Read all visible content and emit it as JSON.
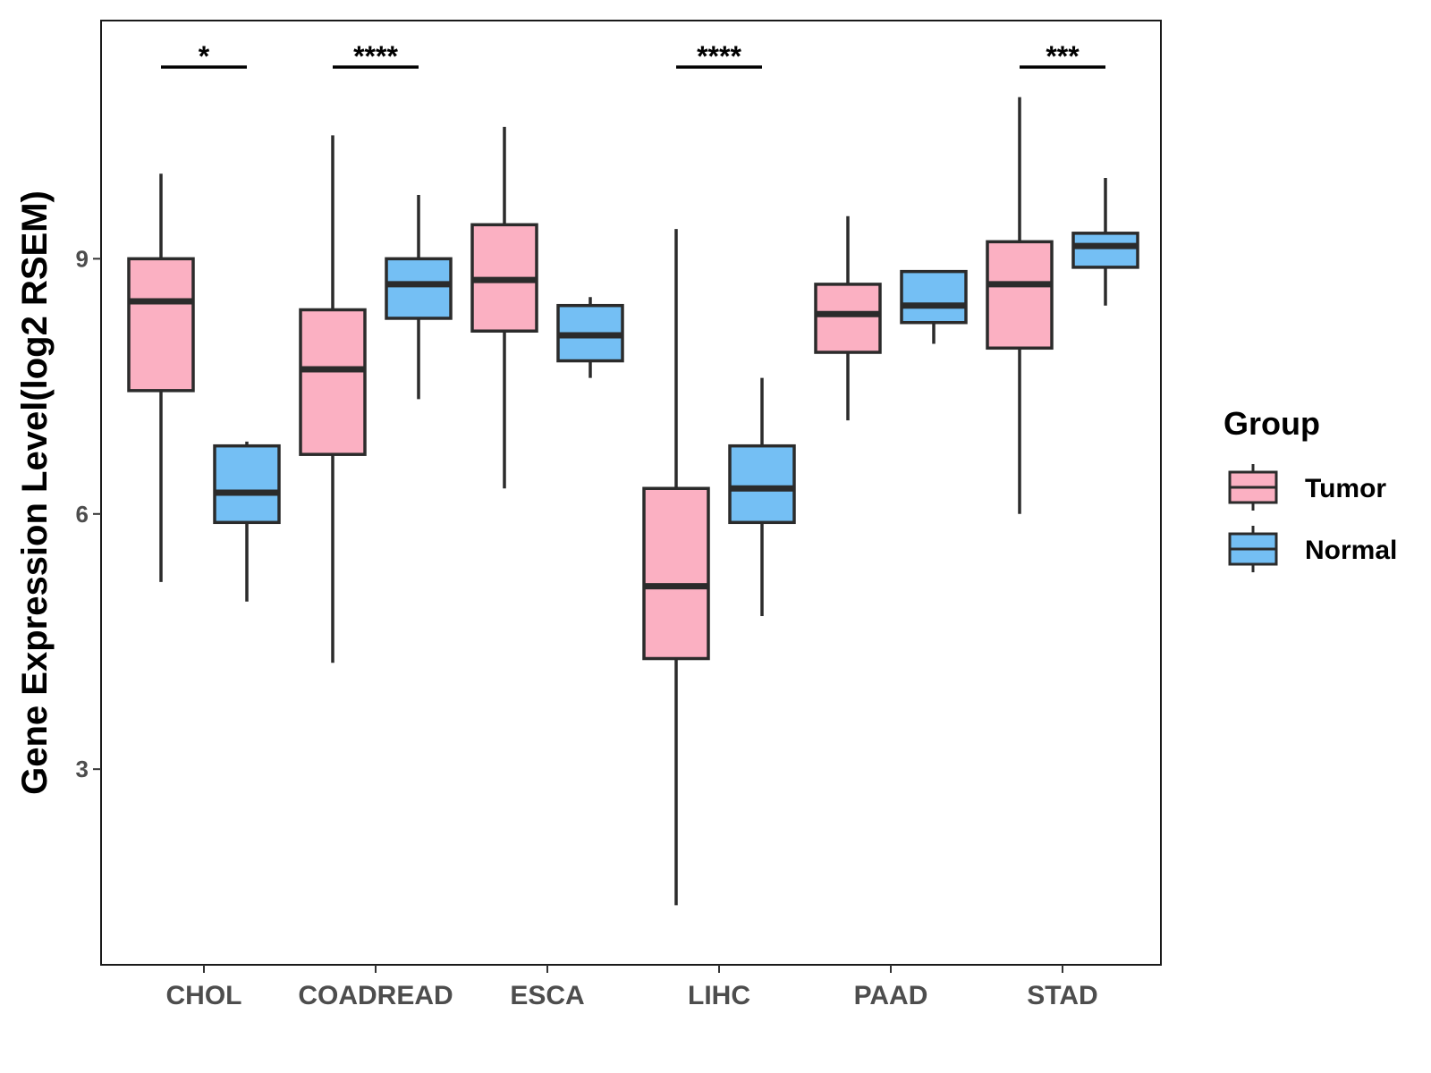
{
  "chart_data": {
    "type": "boxplot",
    "title": "",
    "xlabel": "",
    "ylabel": "Gene Expression Level(log2 RSEM)",
    "ylim": [
      0.7,
      11.8
    ],
    "yticks": [
      3,
      6,
      9
    ],
    "categories": [
      "CHOL",
      "COADREAD",
      "ESCA",
      "LIHC",
      "PAAD",
      "STAD"
    ],
    "series": [
      {
        "name": "Tumor",
        "color": "#FBB0C2",
        "boxes": [
          {
            "min": 5.2,
            "q1": 7.45,
            "median": 8.5,
            "q3": 9.0,
            "max": 10.0
          },
          {
            "min": 4.25,
            "q1": 6.7,
            "median": 7.7,
            "q3": 8.4,
            "max": 10.45
          },
          {
            "min": 6.3,
            "q1": 8.15,
            "median": 8.75,
            "q3": 9.4,
            "max": 10.55
          },
          {
            "min": 1.4,
            "q1": 4.3,
            "median": 5.15,
            "q3": 6.3,
            "max": 9.35
          },
          {
            "min": 7.1,
            "q1": 7.9,
            "median": 8.35,
            "q3": 8.7,
            "max": 9.5
          },
          {
            "min": 6.0,
            "q1": 7.95,
            "median": 8.7,
            "q3": 9.2,
            "max": 10.9
          }
        ]
      },
      {
        "name": "Normal",
        "color": "#74BFF4",
        "boxes": [
          {
            "min": 4.97,
            "q1": 5.9,
            "median": 6.25,
            "q3": 6.8,
            "max": 6.85
          },
          {
            "min": 7.35,
            "q1": 8.3,
            "median": 8.7,
            "q3": 9.0,
            "max": 9.75
          },
          {
            "min": 7.6,
            "q1": 7.8,
            "median": 8.1,
            "q3": 8.45,
            "max": 8.55
          },
          {
            "min": 4.8,
            "q1": 5.9,
            "median": 6.3,
            "q3": 6.8,
            "max": 7.6
          },
          {
            "min": 8.0,
            "q1": 8.25,
            "median": 8.45,
            "q3": 8.85,
            "max": 8.85
          },
          {
            "min": 8.45,
            "q1": 8.9,
            "median": 9.15,
            "q3": 9.3,
            "max": 9.95
          }
        ]
      }
    ],
    "significance": [
      {
        "category": "CHOL",
        "label": "*"
      },
      {
        "category": "COADREAD",
        "label": "****"
      },
      {
        "category": "LIHC",
        "label": "****"
      },
      {
        "category": "STAD",
        "label": "***"
      }
    ],
    "legend": {
      "title": "Group",
      "position": "right",
      "items": [
        "Tumor",
        "Normal"
      ]
    }
  }
}
